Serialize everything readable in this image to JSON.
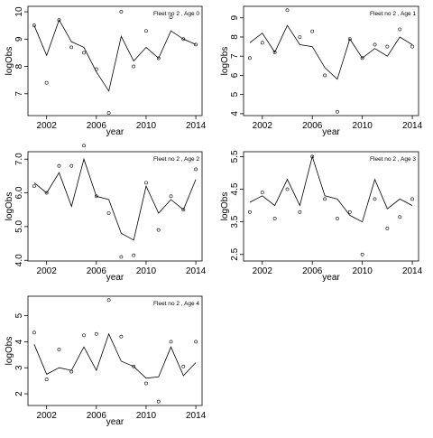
{
  "chart_data": [
    {
      "type": "line",
      "title": "Fleet no 2 , Age 0",
      "xlabel": "year",
      "ylabel": "logObs",
      "xlim": [
        2000.5,
        2014.5
      ],
      "ylim": [
        6.2,
        10.2
      ],
      "xticks": [
        2002,
        2006,
        2010,
        2014
      ],
      "yticks": [
        7,
        8,
        9,
        10
      ],
      "x": [
        2001,
        2002,
        2003,
        2004,
        2005,
        2006,
        2007,
        2008,
        2009,
        2010,
        2011,
        2012,
        2013,
        2014
      ],
      "series": [
        {
          "role": "fitted",
          "values": [
            9.5,
            8.4,
            9.7,
            8.9,
            8.7,
            7.8,
            7.1,
            9.1,
            8.2,
            8.7,
            8.3,
            9.3,
            9.0,
            8.8
          ]
        },
        {
          "role": "observed",
          "values": [
            9.5,
            7.4,
            9.7,
            8.7,
            8.5,
            7.9,
            6.3,
            10.0,
            8.0,
            9.3,
            8.3,
            9.8,
            9.0,
            8.8
          ]
        }
      ]
    },
    {
      "type": "line",
      "title": "Fleet no 2 , Age 1",
      "xlabel": "year",
      "ylabel": "logObs",
      "xlim": [
        2000.5,
        2014.5
      ],
      "ylim": [
        3.9,
        9.6
      ],
      "xticks": [
        2002,
        2006,
        2010,
        2014
      ],
      "yticks": [
        4,
        5,
        6,
        7,
        8,
        9
      ],
      "x": [
        2001,
        2002,
        2003,
        2004,
        2005,
        2006,
        2007,
        2008,
        2009,
        2010,
        2011,
        2012,
        2013,
        2014
      ],
      "series": [
        {
          "role": "fitted",
          "values": [
            7.7,
            8.2,
            7.2,
            8.6,
            7.6,
            7.5,
            6.4,
            5.8,
            7.9,
            6.9,
            7.4,
            7.0,
            8.0,
            7.6
          ]
        },
        {
          "role": "observed",
          "values": [
            6.9,
            7.7,
            7.2,
            9.4,
            8.0,
            8.3,
            6.0,
            4.1,
            7.9,
            6.9,
            7.6,
            7.5,
            8.4,
            7.5
          ]
        }
      ]
    },
    {
      "type": "line",
      "title": "Fleet no 2 , Age 2",
      "xlabel": "year",
      "ylabel": "logObs",
      "xlim": [
        2000.5,
        2014.5
      ],
      "ylim": [
        3.98,
        7.22
      ],
      "xticks": [
        2002,
        2006,
        2010,
        2014
      ],
      "yticks": [
        4.0,
        5.0,
        6.0,
        7.0
      ],
      "ytick_labels": [
        "4.0",
        "5.0",
        "6.0",
        "7.0"
      ],
      "x": [
        2001,
        2002,
        2003,
        2004,
        2005,
        2006,
        2007,
        2008,
        2009,
        2010,
        2011,
        2012,
        2013,
        2014
      ],
      "series": [
        {
          "role": "fitted",
          "values": [
            6.3,
            6.0,
            6.6,
            5.6,
            7.0,
            5.9,
            5.8,
            4.8,
            4.6,
            6.2,
            5.4,
            5.8,
            5.5,
            6.4
          ]
        },
        {
          "role": "observed",
          "values": [
            6.2,
            6.0,
            6.8,
            6.8,
            7.4,
            5.9,
            5.4,
            4.1,
            4.15,
            6.3,
            4.9,
            5.9,
            5.5,
            6.7
          ]
        }
      ]
    },
    {
      "type": "line",
      "title": "Fleet no 2 , Age 3",
      "xlabel": "year",
      "ylabel": "logObs",
      "xlim": [
        2000.5,
        2014.5
      ],
      "ylim": [
        2.3,
        5.65
      ],
      "xticks": [
        2002,
        2006,
        2010,
        2014
      ],
      "yticks": [
        2.5,
        3.5,
        4.5,
        5.5
      ],
      "ytick_labels": [
        "2.5",
        "3.5",
        "4.5",
        "5.5"
      ],
      "x": [
        2001,
        2002,
        2003,
        2004,
        2005,
        2006,
        2007,
        2008,
        2009,
        2010,
        2011,
        2012,
        2013,
        2014
      ],
      "series": [
        {
          "role": "fitted",
          "values": [
            4.1,
            4.3,
            4.0,
            4.8,
            4.0,
            5.5,
            4.3,
            4.2,
            3.7,
            3.5,
            4.8,
            3.9,
            4.2,
            4.0
          ]
        },
        {
          "role": "observed",
          "values": [
            3.8,
            4.4,
            3.6,
            4.5,
            3.8,
            5.5,
            4.2,
            3.6,
            3.8,
            2.5,
            4.2,
            3.3,
            3.65,
            4.2
          ]
        }
      ]
    },
    {
      "type": "line",
      "title": "Fleet no 2 , Age 4",
      "xlabel": "year",
      "ylabel": "logObs",
      "xlim": [
        2000.5,
        2014.5
      ],
      "ylim": [
        1.55,
        5.75
      ],
      "xticks": [
        2002,
        2006,
        2010,
        2014
      ],
      "yticks": [
        2,
        3,
        4,
        5
      ],
      "x": [
        2001,
        2002,
        2003,
        2004,
        2005,
        2006,
        2007,
        2008,
        2009,
        2010,
        2011,
        2012,
        2013,
        2014
      ],
      "series": [
        {
          "role": "fitted",
          "values": [
            3.9,
            2.75,
            3.0,
            2.9,
            3.8,
            2.9,
            4.3,
            3.25,
            3.05,
            2.6,
            2.65,
            3.8,
            2.7,
            3.2
          ]
        },
        {
          "role": "observed",
          "values": [
            4.35,
            2.55,
            3.7,
            2.85,
            4.25,
            4.3,
            5.6,
            4.2,
            3.05,
            2.4,
            1.7,
            4.0,
            3.05,
            4.0
          ]
        }
      ]
    }
  ]
}
